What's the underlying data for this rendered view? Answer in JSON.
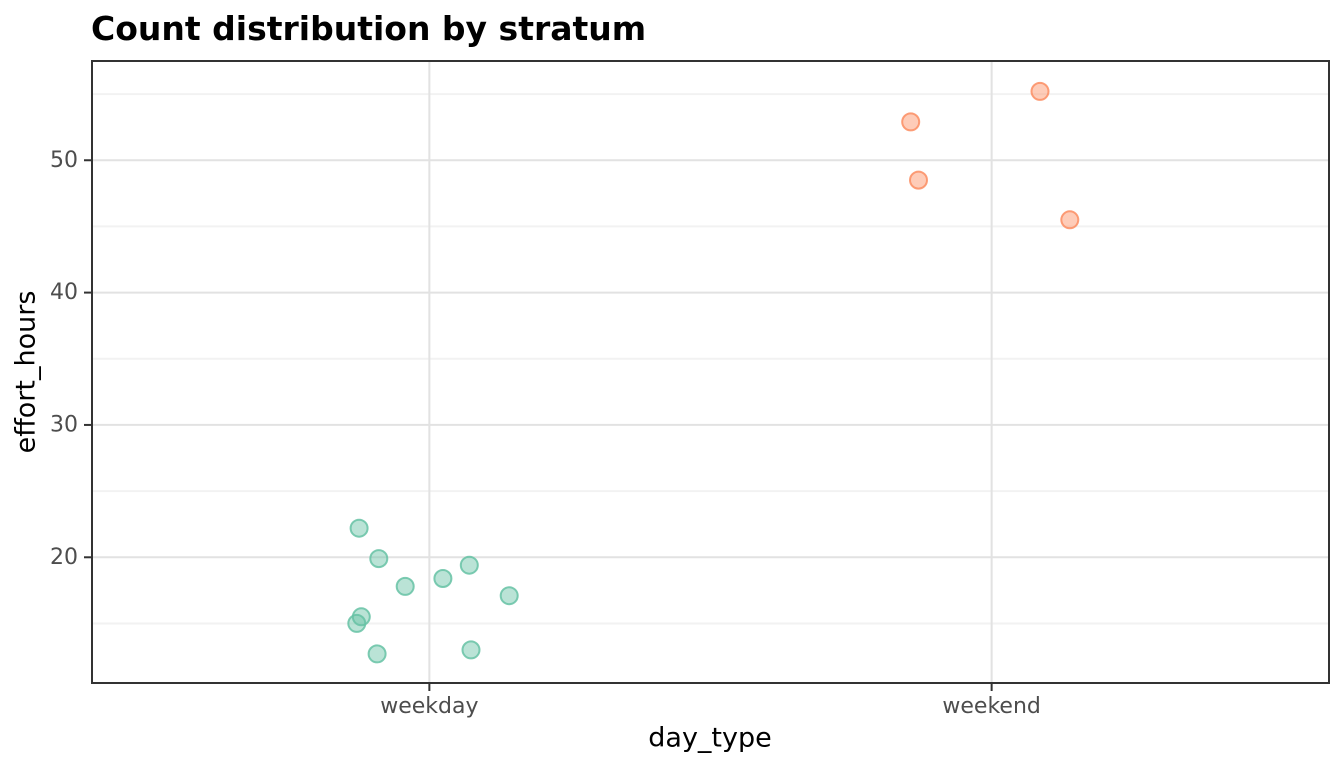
{
  "title": "Count distribution by stratum",
  "chart_data": {
    "type": "scatter",
    "variant": "jittered-strip-plot",
    "title": "Count distribution by stratum",
    "xlabel": "day_type",
    "ylabel": "effort_hours",
    "categories": [
      "weekday",
      "weekend"
    ],
    "category_positions": [
      1,
      2
    ],
    "x_domain": [
      0.4,
      2.6
    ],
    "ylim": [
      10.5,
      57.5
    ],
    "y_major_ticks": [
      20,
      30,
      40,
      50
    ],
    "y_minor_ticks": [
      15,
      25,
      35,
      45,
      55
    ],
    "grid": true,
    "legend": "none",
    "point_style": {
      "radius": 8.5,
      "stroke_width": 2,
      "fill_opacity": 0.45,
      "stroke_opacity": 0.85
    },
    "series": [
      {
        "name": "weekday",
        "color": "#66C2A5",
        "points": [
          {
            "x": 0.875,
            "effort_hours": 22.2
          },
          {
            "x": 0.91,
            "effort_hours": 19.9
          },
          {
            "x": 0.957,
            "effort_hours": 17.8
          },
          {
            "x": 1.024,
            "effort_hours": 18.4
          },
          {
            "x": 1.071,
            "effort_hours": 19.4
          },
          {
            "x": 1.142,
            "effort_hours": 17.1
          },
          {
            "x": 0.879,
            "effort_hours": 15.5
          },
          {
            "x": 0.871,
            "effort_hours": 15.0
          },
          {
            "x": 0.907,
            "effort_hours": 12.7
          },
          {
            "x": 1.074,
            "effort_hours": 13.0
          }
        ]
      },
      {
        "name": "weekend",
        "color": "#FC8D62",
        "points": [
          {
            "x": 1.856,
            "effort_hours": 52.9
          },
          {
            "x": 2.086,
            "effort_hours": 55.2
          },
          {
            "x": 1.87,
            "effort_hours": 48.5
          },
          {
            "x": 2.139,
            "effort_hours": 45.5
          }
        ]
      }
    ],
    "colors": {
      "background": "#ffffff",
      "panel_background": "#ffffff",
      "panel_border": "#333333",
      "grid_major": "#e2e2e2",
      "grid_minor": "#f2f2f2",
      "tick": "#333333",
      "tick_label": "#4d4d4d",
      "axis_title": "#000000",
      "title": "#000000"
    }
  }
}
